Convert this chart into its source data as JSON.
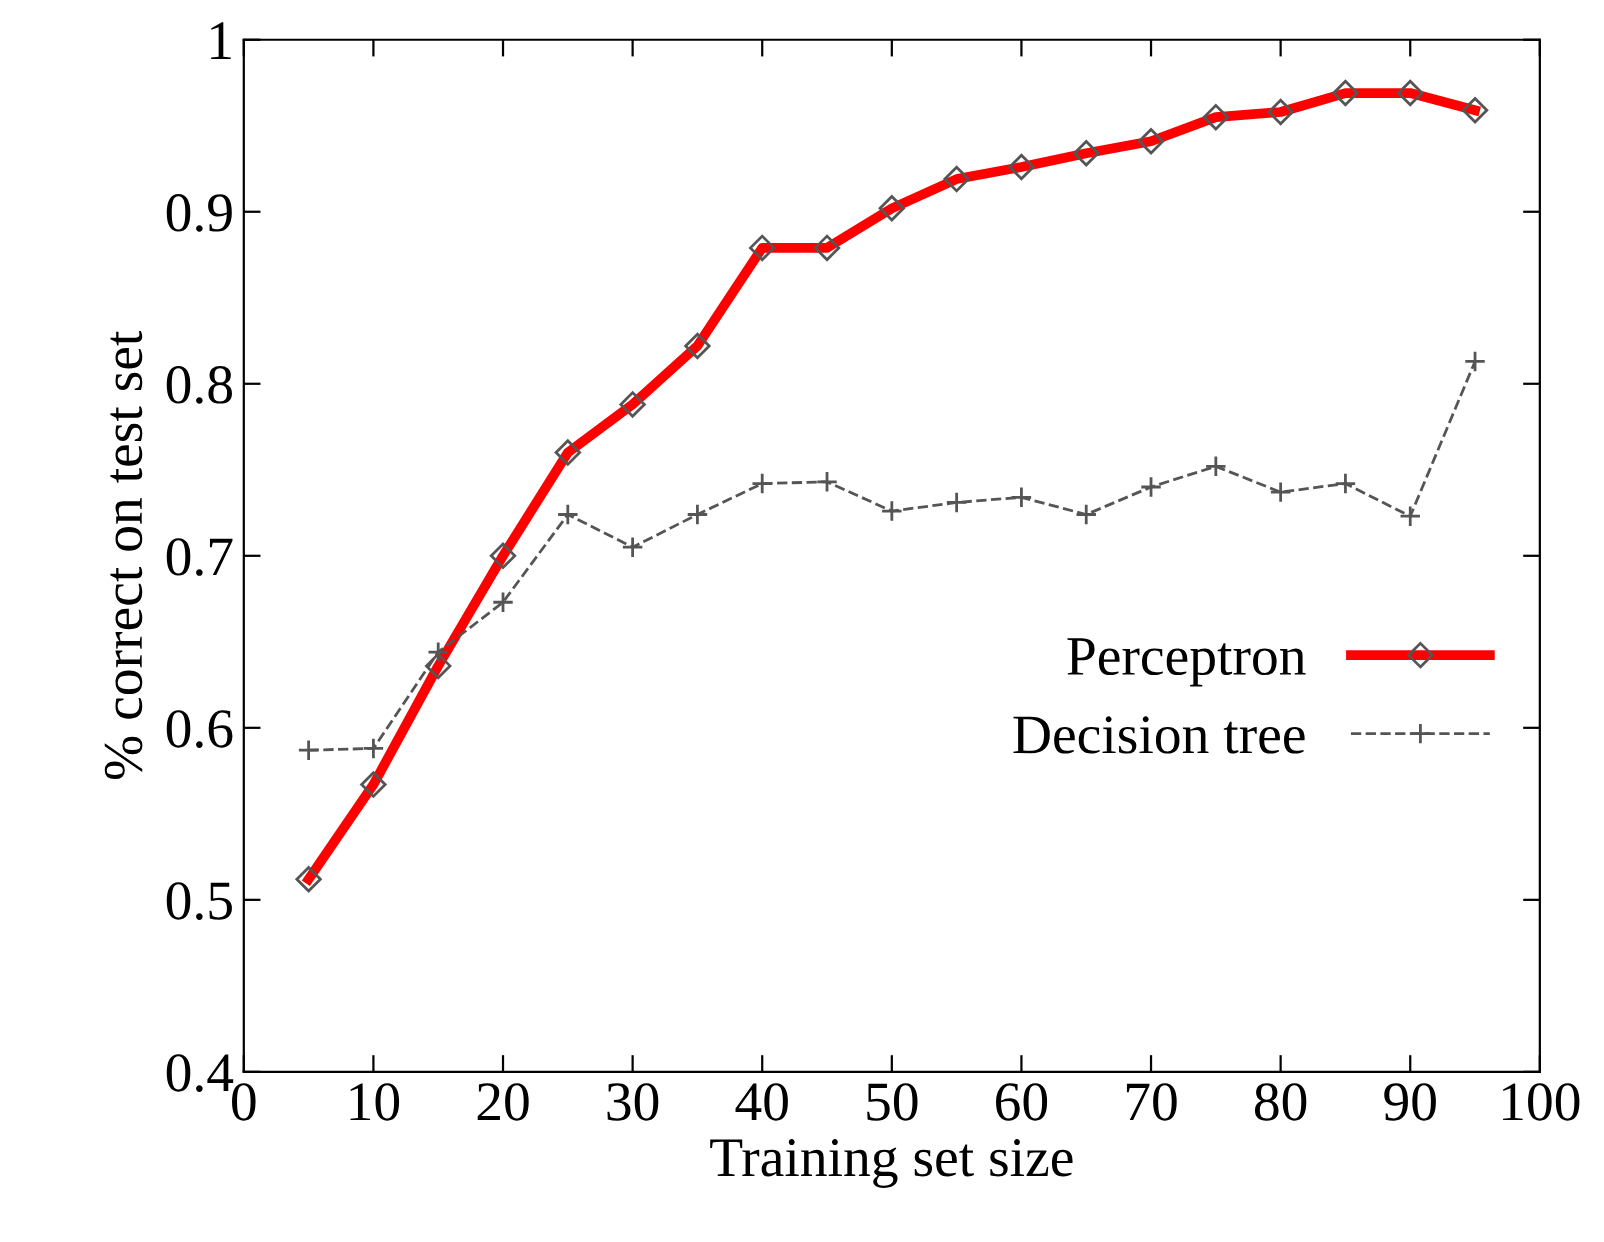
{
  "chart_data": {
    "type": "line",
    "xlabel": "Training set size",
    "ylabel": "% correct on test set",
    "x": [
      5,
      10,
      15,
      20,
      25,
      30,
      35,
      40,
      45,
      50,
      55,
      60,
      65,
      70,
      75,
      80,
      85,
      90,
      95
    ],
    "series": [
      {
        "name": "Perceptron",
        "color": "#ff0000",
        "marker": "diamond",
        "line_style": "solid",
        "values": [
          0.512,
          0.567,
          0.636,
          0.7,
          0.76,
          0.788,
          0.822,
          0.879,
          0.879,
          0.902,
          0.919,
          0.926,
          0.934,
          0.941,
          0.955,
          0.958,
          0.969,
          0.969,
          0.959
        ]
      },
      {
        "name": "Decision tree",
        "color": "#555555",
        "marker": "cross",
        "line_style": "dashed",
        "values": [
          0.587,
          0.588,
          0.644,
          0.673,
          0.724,
          0.705,
          0.724,
          0.742,
          0.743,
          0.726,
          0.731,
          0.734,
          0.724,
          0.74,
          0.752,
          0.737,
          0.742,
          0.723,
          0.813
        ]
      }
    ],
    "xlim": [
      0,
      100
    ],
    "xticks": [
      0,
      10,
      20,
      30,
      40,
      50,
      60,
      70,
      80,
      90,
      100
    ],
    "ylim": [
      0.4,
      1
    ],
    "yticks": [
      0.4,
      0.5,
      0.6,
      0.7,
      0.8,
      0.9,
      1
    ],
    "grid": false,
    "legend": "right"
  }
}
